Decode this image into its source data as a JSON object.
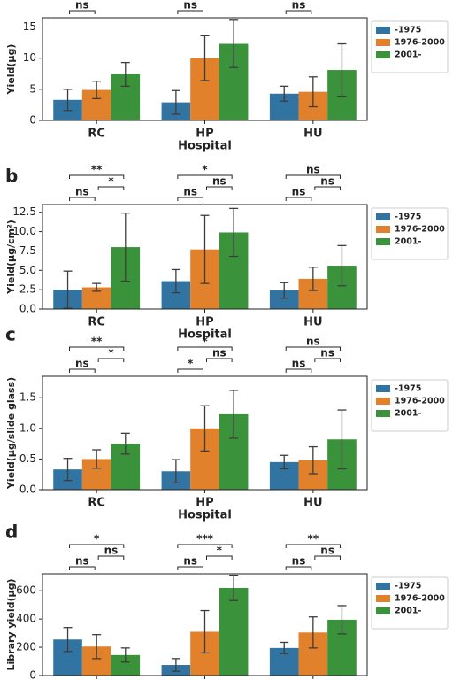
{
  "chart_data": [
    {
      "type": "bar",
      "ylabel": "Yield(μg)",
      "xlabel": "Hospital",
      "categories": [
        "RC",
        "HP",
        "HU"
      ],
      "series": [
        {
          "name": "-1975",
          "color": "#3274a1",
          "values": [
            3.3,
            2.9,
            4.3
          ],
          "errors": [
            1.7,
            1.9,
            1.2
          ]
        },
        {
          "name": "1976-2000",
          "color": "#e1812c",
          "values": [
            4.9,
            10.0,
            4.6
          ],
          "errors": [
            1.4,
            3.6,
            2.4
          ]
        },
        {
          "name": "2001-",
          "color": "#3a923a",
          "values": [
            7.4,
            12.3,
            8.1
          ],
          "errors": [
            1.9,
            3.8,
            4.2
          ]
        }
      ],
      "ylim": [
        0,
        16.5
      ],
      "yticks": [
        0,
        5,
        10,
        15
      ],
      "significance": [
        [
          "ns"
        ],
        [
          "ns"
        ],
        [
          "ns"
        ]
      ]
    },
    {
      "type": "bar",
      "label": "b",
      "ylabel": "Yield(μg/cm²)",
      "xlabel": "Hospital",
      "categories": [
        "RC",
        "HP",
        "HU"
      ],
      "series": [
        {
          "name": "-1975",
          "color": "#3274a1",
          "values": [
            2.5,
            3.6,
            2.4
          ],
          "errors": [
            2.4,
            1.5,
            1.0
          ]
        },
        {
          "name": "1976-2000",
          "color": "#e1812c",
          "values": [
            2.8,
            7.7,
            3.9
          ],
          "errors": [
            0.5,
            4.4,
            1.5
          ]
        },
        {
          "name": "2001-",
          "color": "#3a923a",
          "values": [
            8.0,
            9.9,
            5.6
          ],
          "errors": [
            4.4,
            3.1,
            2.6
          ]
        }
      ],
      "ylim": [
        0,
        13.5
      ],
      "yticks": [
        {
          "value": 0,
          "label": "0.0"
        },
        {
          "value": 2.5,
          "label": "2.5"
        },
        {
          "value": 5,
          "label": "5.0"
        },
        {
          "value": 7.5,
          "label": "7.5"
        },
        {
          "value": 10,
          "label": "10.0"
        },
        {
          "value": 12.5,
          "label": "12.5"
        }
      ],
      "significance": [
        [
          "ns",
          "*",
          "**"
        ],
        [
          "ns",
          "ns",
          "*"
        ],
        [
          "ns",
          "ns",
          "ns"
        ]
      ]
    },
    {
      "type": "bar",
      "label": "c",
      "ylabel": "Yield(μg/slide glass)",
      "xlabel": "Hospital",
      "categories": [
        "RC",
        "HP",
        "HU"
      ],
      "series": [
        {
          "name": "-1975",
          "color": "#3274a1",
          "values": [
            0.33,
            0.3,
            0.45
          ],
          "errors": [
            0.18,
            0.19,
            0.11
          ]
        },
        {
          "name": "1976-2000",
          "color": "#e1812c",
          "values": [
            0.5,
            1.0,
            0.48
          ],
          "errors": [
            0.15,
            0.37,
            0.22
          ]
        },
        {
          "name": "2001-",
          "color": "#3a923a",
          "values": [
            0.75,
            1.23,
            0.82
          ],
          "errors": [
            0.17,
            0.39,
            0.48
          ]
        }
      ],
      "ylim": [
        0,
        1.85
      ],
      "yticks": [
        {
          "value": 0,
          "label": "0.0"
        },
        {
          "value": 0.5,
          "label": "0.5"
        },
        {
          "value": 1,
          "label": "1.0"
        },
        {
          "value": 1.5,
          "label": "1.5"
        }
      ],
      "significance": [
        [
          "ns",
          "*",
          "**"
        ],
        [
          "*",
          "ns",
          "*"
        ],
        [
          "ns",
          "ns",
          "ns"
        ]
      ]
    },
    {
      "type": "bar",
      "label": "d",
      "ylabel": "Library yield(μg)",
      "categories": [
        null,
        null,
        null
      ],
      "series": [
        {
          "name": "-1975",
          "color": "#3274a1",
          "values": [
            255,
            75,
            195
          ],
          "errors": [
            85,
            45,
            40
          ]
        },
        {
          "name": "1976-2000",
          "color": "#e1812c",
          "values": [
            205,
            310,
            305
          ],
          "errors": [
            85,
            150,
            110
          ]
        },
        {
          "name": "2001-",
          "color": "#3a923a",
          "values": [
            145,
            620,
            395
          ],
          "errors": [
            50,
            90,
            100
          ]
        }
      ],
      "ylim": [
        0,
        720
      ],
      "yticks": [
        0,
        200,
        400,
        600
      ],
      "significance": [
        [
          "ns",
          "ns",
          "*"
        ],
        [
          "ns",
          "*",
          "***"
        ],
        [
          "ns",
          "ns",
          "**"
        ]
      ]
    }
  ]
}
